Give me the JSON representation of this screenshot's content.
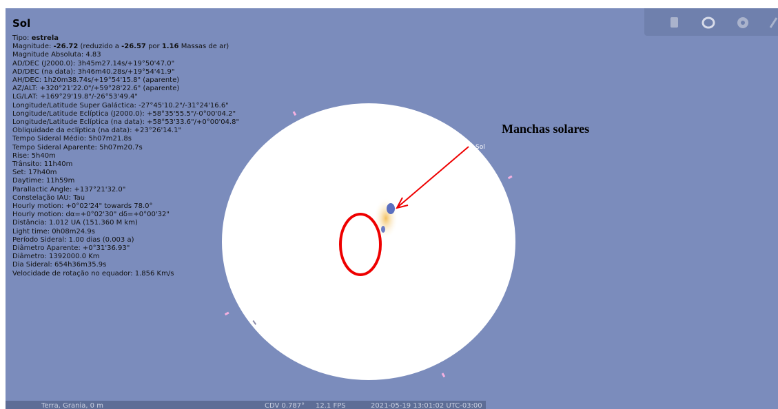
{
  "object_name": "Sol",
  "info": {
    "lines": [
      [
        {
          "text": "Tipo: ",
          "bold": false
        },
        {
          "text": "estrela",
          "bold": true
        }
      ],
      [
        {
          "text": "Magnitude: ",
          "bold": false
        },
        {
          "text": "-26.72",
          "bold": true
        },
        {
          "text": " (reduzido a ",
          "bold": false
        },
        {
          "text": "-26.57",
          "bold": true
        },
        {
          "text": " por ",
          "bold": false
        },
        {
          "text": "1.16",
          "bold": true
        },
        {
          "text": " Massas de ar)",
          "bold": false
        }
      ],
      "Magnitude Absoluta: 4.83",
      "AD/DEC (J2000.0): 3h45m27.14s/+19°50'47.0\"",
      "AD/DEC (na data): 3h46m40.28s/+19°54'41.9\"",
      "AH/DEC: 1h20m38.74s/+19°54'15.8\" (aparente)",
      "AZ/ALT: +320°21'22.0\"/+59°28'22.6\" (aparente)",
      "LG/LAT: +169°29'19.8\"/-26°53'49.4\"",
      "Longitude/Latitude Super Galáctica: -27°45'10.2\"/-31°24'16.6\"",
      "Longitude/Latitude Eclíptica (J2000.0): +58°35'55.5\"/-0°00'04.2\"",
      "Longitude/Latitude Eclíptica (na data): +58°53'33.6\"/+0°00'04.8\"",
      "Obliquidade da eclíptica (na data): +23°26'14.1\"",
      "Tempo Sideral Médio: 5h07m21.8s",
      "Tempo Sideral Aparente: 5h07m20.7s",
      "Rise: 5h40m",
      "Trânsito: 11h40m",
      "Set: 17h40m",
      "Daytime: 11h59m",
      "Parallactic Angle: +137°21'32.0\"",
      "Constelação IAU: Tau",
      "Hourly motion: +0°02'24\" towards 78.0°",
      "Hourly motion: dα=+0°02'30\" dδ=+0°00'32\"",
      "Distância: 1.012 UA (151.360 M km)",
      "Light time: 0h08m24.9s",
      "Período Sideral: 1.00 dias (0.003 a)",
      "Diâmetro Aparente: +0°31'36.93\"",
      "Diâmetro: 1392000.0 Km",
      "Dia Sideral: 654h36m35.9s",
      "Velocidade de rotação no equador: 1.856 Km/s"
    ]
  },
  "sky_label": "Sol",
  "annotation": "Manchas solares",
  "status_bar": {
    "location": "Terra, Grania, 0 m",
    "fov": "CDV 0.787°",
    "fps": "12.1 FPS",
    "datetime": "2021-05-19 13:01:02 UTC-03:00"
  }
}
